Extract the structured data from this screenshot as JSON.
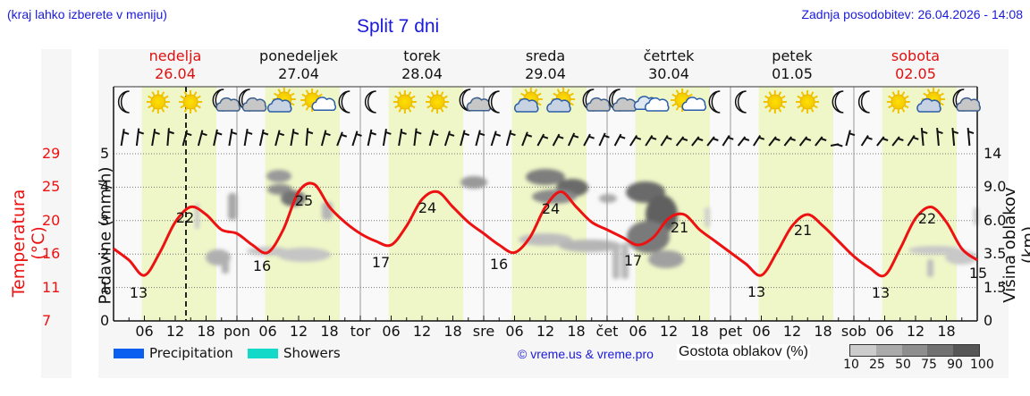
{
  "header": {
    "location_hint": "(kraj lahko izberete v meniju)",
    "title": "Split 7 dni",
    "last_update": "Zadnja posodobitev: 26.04.2026 - 14:08"
  },
  "days": [
    {
      "name": "nedelja",
      "date": "26.04",
      "weekend": true
    },
    {
      "name": "ponedeljek",
      "date": "27.04",
      "weekend": false
    },
    {
      "name": "torek",
      "date": "28.04",
      "weekend": false
    },
    {
      "name": "sreda",
      "date": "29.04",
      "weekend": false
    },
    {
      "name": "četrtek",
      "date": "30.04",
      "weekend": false
    },
    {
      "name": "petek",
      "date": "01.05",
      "weekend": false
    },
    {
      "name": "sobota",
      "date": "02.05",
      "weekend": true
    }
  ],
  "x_axis": {
    "labels": [
      "06",
      "12",
      "18",
      "pon",
      "06",
      "12",
      "18",
      "tor",
      "06",
      "12",
      "18",
      "sre",
      "06",
      "12",
      "18",
      "čet",
      "06",
      "12",
      "18",
      "pet",
      "06",
      "12",
      "18",
      "sob",
      "06",
      "12",
      "18"
    ]
  },
  "axes": {
    "temp_title": "Temperatura (°C)",
    "temp_ticks": [
      "29",
      "25",
      "20",
      "16",
      "11",
      "7"
    ],
    "precip_title": "Padavine (mm/h)",
    "precip_ticks": [
      "5",
      "4",
      "3",
      "2",
      "1",
      "0"
    ],
    "cloud_title": "Višina oblakov (km)",
    "cloud_ticks": [
      "14",
      "9.0",
      "6.0",
      "3.5",
      "1.5",
      "0"
    ]
  },
  "icons": [
    [
      "moon",
      "sun",
      "sun",
      "moon-cloud"
    ],
    [
      "moon-cloud",
      "sun-cloud",
      "sun-small-cloud",
      "moon"
    ],
    [
      "moon",
      "sun",
      "sun",
      "moon-cloud-small"
    ],
    [
      "moon",
      "sun-cloud",
      "sun-cloud",
      "moon-cloud"
    ],
    [
      "moon-cloud",
      "cloud",
      "sun-small-cloud",
      "moon"
    ],
    [
      "moon",
      "sun",
      "sun",
      "moon"
    ],
    [
      "moon",
      "sun",
      "sun-cloud",
      "moon-cloud"
    ]
  ],
  "legend": {
    "precip_label": "Precipitation",
    "precip_color": "#0a5ff0",
    "showers_label": "Showers",
    "showers_color": "#12d9c8",
    "copyright": "© vreme.us & vreme.pro",
    "cloud_density_title": "Gostota oblakov (%)",
    "cloud_density_scale": [
      "10",
      "25",
      "50",
      "75",
      "90",
      "100"
    ],
    "cloud_density_colors": [
      "#cccccc",
      "#aaaaaa",
      "#8e8e8e",
      "#717171",
      "#565656"
    ]
  },
  "colors": {
    "temp_line": "#ee1111",
    "daylight": "#eff7c8",
    "plot_bg": "#f9f9f9"
  },
  "chart_data": {
    "type": "line",
    "title": "Split 7 dni",
    "xlabel": "",
    "ylabel": "Temperatura (°C)",
    "ylabel_left2": "Padavine (mm/h)",
    "ylabel_right": "Višina oblakov (km)",
    "ylim_temp": [
      7,
      29
    ],
    "ylim_precip": [
      0,
      5
    ],
    "x_hours": [
      0,
      3,
      6,
      9,
      12,
      15,
      18,
      21,
      24,
      27,
      30,
      33,
      36,
      39,
      42,
      45,
      48,
      51,
      54,
      57,
      60,
      63,
      66,
      69,
      72,
      75,
      78,
      81,
      84,
      87,
      90,
      93,
      96,
      99,
      102,
      105,
      108,
      111,
      114,
      117,
      120,
      123,
      126,
      129,
      132,
      135,
      138,
      141,
      144,
      147,
      150,
      153,
      156,
      159,
      162,
      165,
      168
    ],
    "series": [
      {
        "name": "Temperatura (°C)",
        "values": [
          16.5,
          15,
          13,
          16,
          20,
          22,
          21,
          19,
          18.5,
          17,
          16,
          19,
          24,
          25,
          22,
          20,
          18.5,
          17.5,
          17,
          19.5,
          23,
          24,
          22,
          20,
          18.5,
          17,
          16,
          18,
          22,
          24,
          22,
          20,
          19,
          18,
          17,
          18,
          20.5,
          21,
          19,
          17.5,
          16,
          14.5,
          13,
          16,
          19.5,
          21,
          19.5,
          17.5,
          15.5,
          14,
          13,
          16.5,
          20.5,
          22,
          20,
          16.5,
          15
        ]
      }
    ],
    "annotations": {
      "min_max_labels": [
        "13",
        "22",
        "16",
        "25",
        "17",
        "24",
        "16",
        "24",
        "17",
        "21",
        "13",
        "21",
        "13",
        "22",
        "15"
      ],
      "now_marker": "26.04 ~14:00"
    },
    "precipitation": "none",
    "grid": true,
    "legend": [
      "Precipitation",
      "Showers",
      "Gostota oblakov (%)"
    ]
  }
}
